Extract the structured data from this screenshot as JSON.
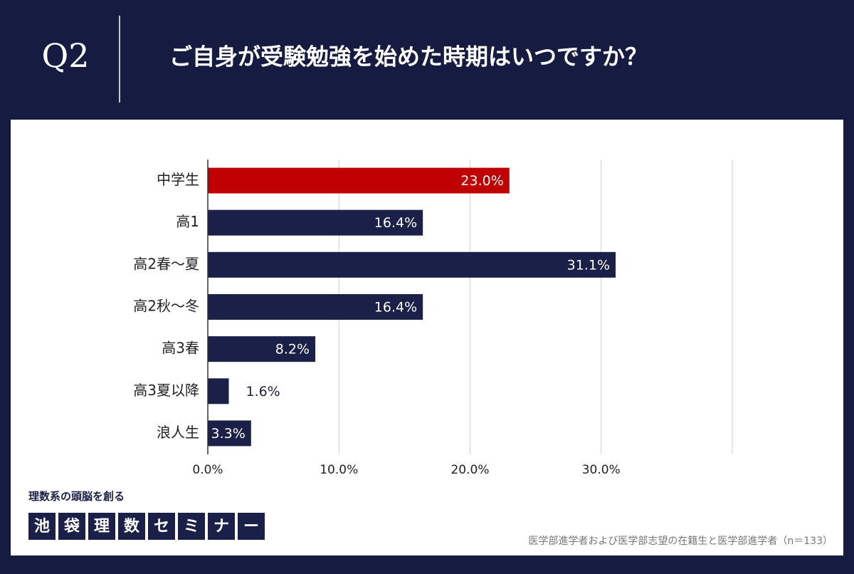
{
  "header": {
    "badge": "Q2",
    "title": "ご自身が受験勉強を始めた時期はいつですか？"
  },
  "chart_data": {
    "type": "barh",
    "categories": [
      "中学生",
      "高1",
      "高2春～夏",
      "高2秋～冬",
      "高3春",
      "高3夏以降",
      "浪人生"
    ],
    "values": [
      23.0,
      16.4,
      31.1,
      16.4,
      8.2,
      1.6,
      3.3
    ],
    "value_labels": [
      "23.0%",
      "16.4%",
      "31.1%",
      "16.4%",
      "8.2%",
      "1.6%",
      "3.3%"
    ],
    "colors": [
      "#c00000",
      "#1b2048",
      "#1b2048",
      "#1b2048",
      "#1b2048",
      "#1b2048",
      "#1b2048"
    ],
    "xlim": [
      0,
      40
    ],
    "xticks": [
      {
        "value": 0,
        "label": "0.0%"
      },
      {
        "value": 10,
        "label": "10.0%"
      },
      {
        "value": 20,
        "label": "20.0%"
      },
      {
        "value": 30,
        "label": "30.0%"
      }
    ],
    "grid": true
  },
  "footer": {
    "tagline": "理数系の頭脳を創る",
    "logo": [
      "池",
      "袋",
      "理",
      "数",
      "セ",
      "ミ",
      "ナ",
      "ー"
    ],
    "note": "医学部進学者および医学部志望の在籍生と医学部進学者（n＝133）"
  }
}
